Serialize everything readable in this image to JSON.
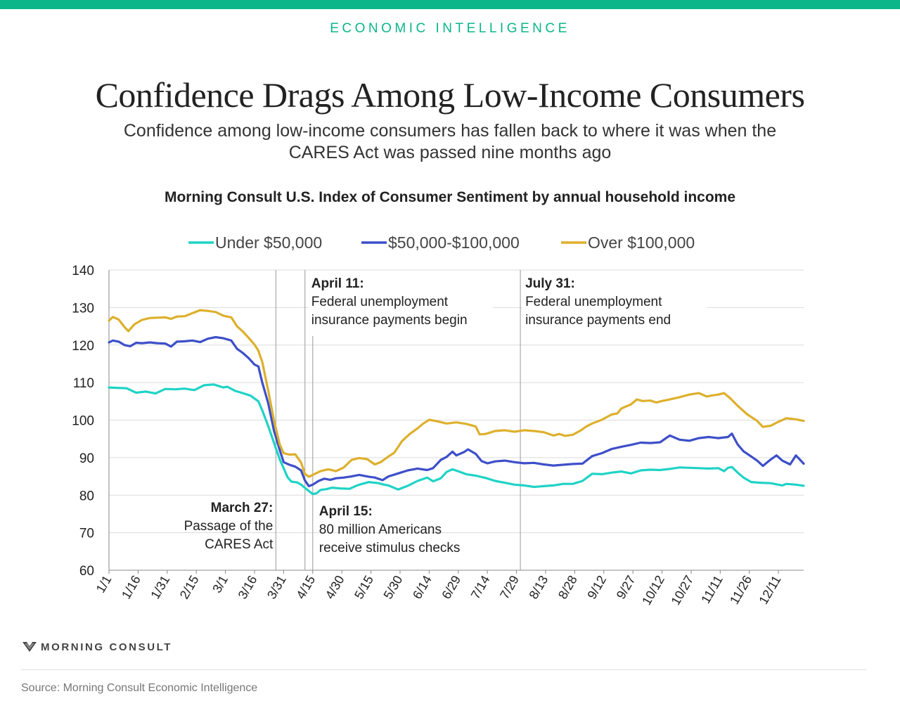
{
  "header": {
    "kicker": "ECONOMIC INTELLIGENCE",
    "title": "Confidence Drags Among Low-Income Consumers",
    "subtitle": "Confidence among low-income consumers has fallen back to where it was when the CARES Act was passed nine months ago",
    "chart_heading": "Morning Consult U.S. Index of Consumer Sentiment by annual household income"
  },
  "colors": {
    "accent": "#0bb68b",
    "under_50k": "#1fd3c6",
    "mid": "#3d4fc9",
    "over_100k": "#ddb02c",
    "grid": "#dcdcdc",
    "annotation_line": "#9a9a9a"
  },
  "footer": {
    "brand": "MORNING CONSULT",
    "brand_icon": "morning-consult-logo-icon",
    "source": "Source: Morning Consult Economic Intelligence"
  },
  "chart_data": {
    "type": "line",
    "title": "Morning Consult U.S. Index of Consumer Sentiment by annual household income",
    "xlabel": "",
    "ylabel": "",
    "ylim": [
      60,
      140
    ],
    "yticks": [
      60,
      70,
      80,
      90,
      100,
      110,
      120,
      130,
      140
    ],
    "xlim": [
      1,
      359
    ],
    "xtick_labels": [
      "1/1",
      "1/16",
      "1/31",
      "2/15",
      "3/1",
      "3/16",
      "3/31",
      "4/15",
      "4/30",
      "5/15",
      "5/30",
      "6/14",
      "6/29",
      "7/14",
      "7/29",
      "8/13",
      "8/28",
      "9/12",
      "9/27",
      "10/12",
      "10/27",
      "11/11",
      "11/26",
      "12/11"
    ],
    "x_unit": "day of year (2020)",
    "grid": true,
    "legend": "top",
    "series": [
      {
        "name": "Under $50,000",
        "color": "#1fd3c6",
        "points": [
          [
            1,
            108.7
          ],
          [
            5,
            108.6
          ],
          [
            10,
            108.5
          ],
          [
            15,
            107.3
          ],
          [
            20,
            107.6
          ],
          [
            25,
            107.1
          ],
          [
            30,
            108.3
          ],
          [
            35,
            108.2
          ],
          [
            40,
            108.4
          ],
          [
            45,
            108
          ],
          [
            50,
            109.3
          ],
          [
            55,
            109.5
          ],
          [
            60,
            108.7
          ],
          [
            62,
            108.9
          ],
          [
            66,
            107.8
          ],
          [
            70,
            107.2
          ],
          [
            74,
            106.5
          ],
          [
            78,
            105
          ],
          [
            80,
            102.6
          ],
          [
            83,
            98.5
          ],
          [
            86,
            94
          ],
          [
            89,
            89.5
          ],
          [
            91,
            87.2
          ],
          [
            93,
            84.8
          ],
          [
            95,
            83.6
          ],
          [
            98,
            83.4
          ],
          [
            100,
            82.8
          ],
          [
            103,
            81.5
          ],
          [
            106,
            80.3
          ],
          [
            108,
            80.5
          ],
          [
            110,
            81.4
          ],
          [
            113,
            81.6
          ],
          [
            116,
            82
          ],
          [
            120,
            81.8
          ],
          [
            125,
            81.7
          ],
          [
            128,
            82.4
          ],
          [
            130,
            82.8
          ],
          [
            135,
            83.5
          ],
          [
            140,
            83.2
          ],
          [
            142,
            82.9
          ],
          [
            145,
            82.6
          ],
          [
            150,
            81.5
          ],
          [
            155,
            82.5
          ],
          [
            160,
            83.8
          ],
          [
            165,
            84.7
          ],
          [
            168,
            83.7
          ],
          [
            172,
            84.5
          ],
          [
            175,
            86.2
          ],
          [
            178,
            86.9
          ],
          [
            182,
            86.2
          ],
          [
            185,
            85.6
          ],
          [
            190,
            85.2
          ],
          [
            195,
            84.6
          ],
          [
            200,
            83.8
          ],
          [
            205,
            83.3
          ],
          [
            210,
            82.8
          ],
          [
            215,
            82.6
          ],
          [
            220,
            82.2
          ],
          [
            225,
            82.4
          ],
          [
            230,
            82.6
          ],
          [
            235,
            83
          ],
          [
            240,
            83
          ],
          [
            245,
            83.8
          ],
          [
            250,
            85.7
          ],
          [
            255,
            85.6
          ],
          [
            260,
            86
          ],
          [
            265,
            86.3
          ],
          [
            270,
            85.8
          ],
          [
            275,
            86.6
          ],
          [
            280,
            86.8
          ],
          [
            285,
            86.7
          ],
          [
            290,
            87
          ],
          [
            295,
            87.4
          ],
          [
            300,
            87.3
          ],
          [
            305,
            87.2
          ],
          [
            310,
            87.1
          ],
          [
            315,
            87.2
          ],
          [
            318,
            86.4
          ],
          [
            320,
            87.3
          ],
          [
            322,
            87.5
          ],
          [
            325,
            86
          ],
          [
            328,
            84.7
          ],
          [
            332,
            83.5
          ],
          [
            337,
            83.3
          ],
          [
            342,
            83.2
          ],
          [
            348,
            82.6
          ],
          [
            350,
            83
          ],
          [
            355,
            82.8
          ],
          [
            359,
            82.5
          ]
        ]
      },
      {
        "name": "$50,000-$100,000",
        "color": "#3d4fc9",
        "points": [
          [
            1,
            120.7
          ],
          [
            3,
            121.2
          ],
          [
            6,
            120.9
          ],
          [
            9,
            120
          ],
          [
            12,
            119.7
          ],
          [
            15,
            120.6
          ],
          [
            18,
            120.5
          ],
          [
            22,
            120.7
          ],
          [
            26,
            120.5
          ],
          [
            30,
            120.4
          ],
          [
            33,
            119.6
          ],
          [
            36,
            120.9
          ],
          [
            40,
            121
          ],
          [
            44,
            121.2
          ],
          [
            48,
            120.8
          ],
          [
            52,
            121.7
          ],
          [
            56,
            122.1
          ],
          [
            60,
            121.8
          ],
          [
            64,
            121.2
          ],
          [
            67,
            119
          ],
          [
            70,
            117.9
          ],
          [
            73,
            116.5
          ],
          [
            76,
            114.8
          ],
          [
            78,
            114.3
          ],
          [
            80,
            110
          ],
          [
            83,
            104.6
          ],
          [
            86,
            97.2
          ],
          [
            89,
            92
          ],
          [
            91,
            88.8
          ],
          [
            94,
            88.1
          ],
          [
            97,
            87.6
          ],
          [
            100,
            86.6
          ],
          [
            102,
            83.9
          ],
          [
            104,
            82.4
          ],
          [
            106,
            82.8
          ],
          [
            109,
            83.8
          ],
          [
            112,
            84.4
          ],
          [
            115,
            84.1
          ],
          [
            118,
            84.5
          ],
          [
            122,
            84.7
          ],
          [
            126,
            85
          ],
          [
            130,
            85.4
          ],
          [
            135,
            84.9
          ],
          [
            138,
            84.7
          ],
          [
            142,
            84
          ],
          [
            145,
            85
          ],
          [
            150,
            85.8
          ],
          [
            155,
            86.6
          ],
          [
            160,
            87.1
          ],
          [
            165,
            86.7
          ],
          [
            168,
            87.2
          ],
          [
            172,
            89.4
          ],
          [
            175,
            90.2
          ],
          [
            178,
            91.6
          ],
          [
            180,
            90.6
          ],
          [
            184,
            91.5
          ],
          [
            186,
            92.2
          ],
          [
            190,
            91
          ],
          [
            193,
            89.1
          ],
          [
            196,
            88.5
          ],
          [
            200,
            89
          ],
          [
            205,
            89.2
          ],
          [
            210,
            88.8
          ],
          [
            215,
            88.5
          ],
          [
            220,
            88.6
          ],
          [
            225,
            88.2
          ],
          [
            230,
            87.9
          ],
          [
            235,
            88.1
          ],
          [
            240,
            88.3
          ],
          [
            245,
            88.4
          ],
          [
            250,
            90.4
          ],
          [
            255,
            91.2
          ],
          [
            260,
            92.3
          ],
          [
            265,
            92.9
          ],
          [
            270,
            93.4
          ],
          [
            275,
            94
          ],
          [
            280,
            93.9
          ],
          [
            285,
            94.1
          ],
          [
            290,
            95.9
          ],
          [
            295,
            94.8
          ],
          [
            300,
            94.5
          ],
          [
            305,
            95.2
          ],
          [
            310,
            95.5
          ],
          [
            315,
            95.2
          ],
          [
            320,
            95.5
          ],
          [
            322,
            96.4
          ],
          [
            325,
            93.5
          ],
          [
            328,
            91.7
          ],
          [
            332,
            90.3
          ],
          [
            335,
            89.2
          ],
          [
            338,
            87.8
          ],
          [
            342,
            89.5
          ],
          [
            345,
            90.6
          ],
          [
            348,
            89.2
          ],
          [
            352,
            88.2
          ],
          [
            355,
            90.6
          ],
          [
            359,
            88.4
          ]
        ]
      },
      {
        "name": "Over $100,000",
        "color": "#ddb02c",
        "points": [
          [
            1,
            126.5
          ],
          [
            3,
            127.5
          ],
          [
            6,
            126.8
          ],
          [
            9,
            124.8
          ],
          [
            11,
            123.7
          ],
          [
            14,
            125.5
          ],
          [
            18,
            126.7
          ],
          [
            22,
            127.2
          ],
          [
            26,
            127.3
          ],
          [
            30,
            127.4
          ],
          [
            33,
            127
          ],
          [
            36,
            127.6
          ],
          [
            40,
            127.7
          ],
          [
            44,
            128.5
          ],
          [
            48,
            129.3
          ],
          [
            52,
            129.1
          ],
          [
            56,
            128.8
          ],
          [
            60,
            127.8
          ],
          [
            64,
            127.4
          ],
          [
            67,
            125
          ],
          [
            70,
            123.6
          ],
          [
            73,
            121.9
          ],
          [
            76,
            120.1
          ],
          [
            78,
            118.5
          ],
          [
            80,
            115.5
          ],
          [
            83,
            108
          ],
          [
            86,
            100
          ],
          [
            89,
            93.5
          ],
          [
            91,
            91.2
          ],
          [
            94,
            90.8
          ],
          [
            97,
            90.9
          ],
          [
            100,
            88.7
          ],
          [
            102,
            85.7
          ],
          [
            104,
            84.9
          ],
          [
            106,
            85.4
          ],
          [
            110,
            86.4
          ],
          [
            114,
            86.9
          ],
          [
            118,
            86.4
          ],
          [
            122,
            87.4
          ],
          [
            126,
            89.4
          ],
          [
            130,
            89.9
          ],
          [
            134,
            89.6
          ],
          [
            138,
            88.2
          ],
          [
            141,
            88.8
          ],
          [
            145,
            90.3
          ],
          [
            148,
            91.3
          ],
          [
            152,
            94.4
          ],
          [
            156,
            96.3
          ],
          [
            160,
            97.8
          ],
          [
            163,
            99.1
          ],
          [
            166,
            100.1
          ],
          [
            170,
            99.7
          ],
          [
            175,
            99.1
          ],
          [
            180,
            99.4
          ],
          [
            185,
            99
          ],
          [
            190,
            98.3
          ],
          [
            192,
            96.2
          ],
          [
            195,
            96.3
          ],
          [
            200,
            97.1
          ],
          [
            205,
            97.3
          ],
          [
            210,
            96.9
          ],
          [
            215,
            97.3
          ],
          [
            220,
            97.1
          ],
          [
            225,
            96.8
          ],
          [
            230,
            95.9
          ],
          [
            233,
            96.3
          ],
          [
            236,
            95.8
          ],
          [
            240,
            96.1
          ],
          [
            244,
            97.2
          ],
          [
            247,
            98.3
          ],
          [
            250,
            99.1
          ],
          [
            255,
            100.1
          ],
          [
            260,
            101.5
          ],
          [
            263,
            101.8
          ],
          [
            265,
            103.1
          ],
          [
            270,
            104.2
          ],
          [
            273,
            105.5
          ],
          [
            276,
            105.1
          ],
          [
            280,
            105.2
          ],
          [
            283,
            104.7
          ],
          [
            286,
            105.1
          ],
          [
            290,
            105.5
          ],
          [
            295,
            106.1
          ],
          [
            300,
            106.8
          ],
          [
            305,
            107.2
          ],
          [
            309,
            106.3
          ],
          [
            312,
            106.6
          ],
          [
            315,
            106.8
          ],
          [
            318,
            107.2
          ],
          [
            321,
            105.9
          ],
          [
            325,
            103.8
          ],
          [
            330,
            101.5
          ],
          [
            335,
            99.8
          ],
          [
            338,
            98.2
          ],
          [
            342,
            98.5
          ],
          [
            345,
            99.3
          ],
          [
            350,
            100.5
          ],
          [
            355,
            100.2
          ],
          [
            359,
            99.8
          ]
        ]
      }
    ],
    "annotations": [
      {
        "date": "March 27",
        "x": 87,
        "bold": "March 27:",
        "lines": [
          "Passage of the",
          "CARES Act"
        ]
      },
      {
        "date": "April 11",
        "x": 102,
        "bold": "April 11:",
        "lines": [
          "Federal unemployment",
          "insurance payments begin"
        ]
      },
      {
        "date": "April 15",
        "x": 106,
        "bold": "April 15:",
        "lines": [
          "80 million Americans",
          "receive stimulus checks"
        ]
      },
      {
        "date": "July 31",
        "x": 213,
        "bold": "July 31:",
        "lines": [
          "Federal unemployment",
          "insurance payments end"
        ]
      }
    ]
  }
}
